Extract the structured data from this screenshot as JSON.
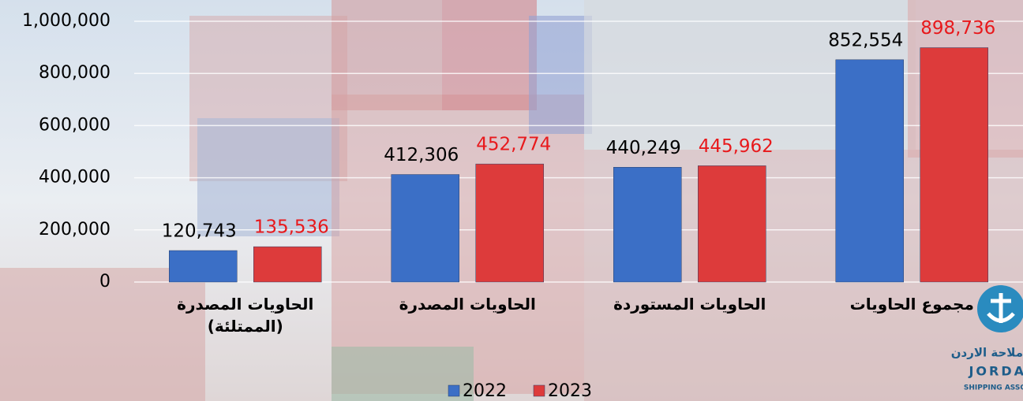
{
  "chart_data": {
    "type": "bar",
    "categories": [
      "الحاويات المصدرة (الممتلئة)",
      "الحاويات المصدرة",
      "الحاويات المستوردة",
      "مجموع الحاويات"
    ],
    "series": [
      {
        "name": "2022",
        "color": "#3b6fc6",
        "values": [
          120743,
          412306,
          440249,
          852554
        ],
        "value_labels": [
          "120,743",
          "412,306",
          "440,249",
          "852,554"
        ],
        "label_color": "#000000"
      },
      {
        "name": "2023",
        "color": "#dd3b3b",
        "values": [
          135536,
          452774,
          445962,
          898736
        ],
        "value_labels": [
          "135,536",
          "452,774",
          "445,962",
          "898,736"
        ],
        "label_color": "#e8191c"
      }
    ],
    "ylim": [
      0,
      1000000
    ],
    "yticks": [
      0,
      {
        "value": 200000,
        "label": "200,000"
      },
      {
        "value": 400000,
        "label": "400,000"
      },
      {
        "value": 600000,
        "label": "600,000"
      },
      {
        "value": 800000,
        "label": "800,000"
      },
      {
        "value": 1000000,
        "label": "1,000,000"
      }
    ],
    "grid": true,
    "legend": "bottom"
  },
  "logo": {
    "arabic": "ملاحة الاردن",
    "english": "JORDA",
    "sub": "SHIPPING ASSO"
  }
}
